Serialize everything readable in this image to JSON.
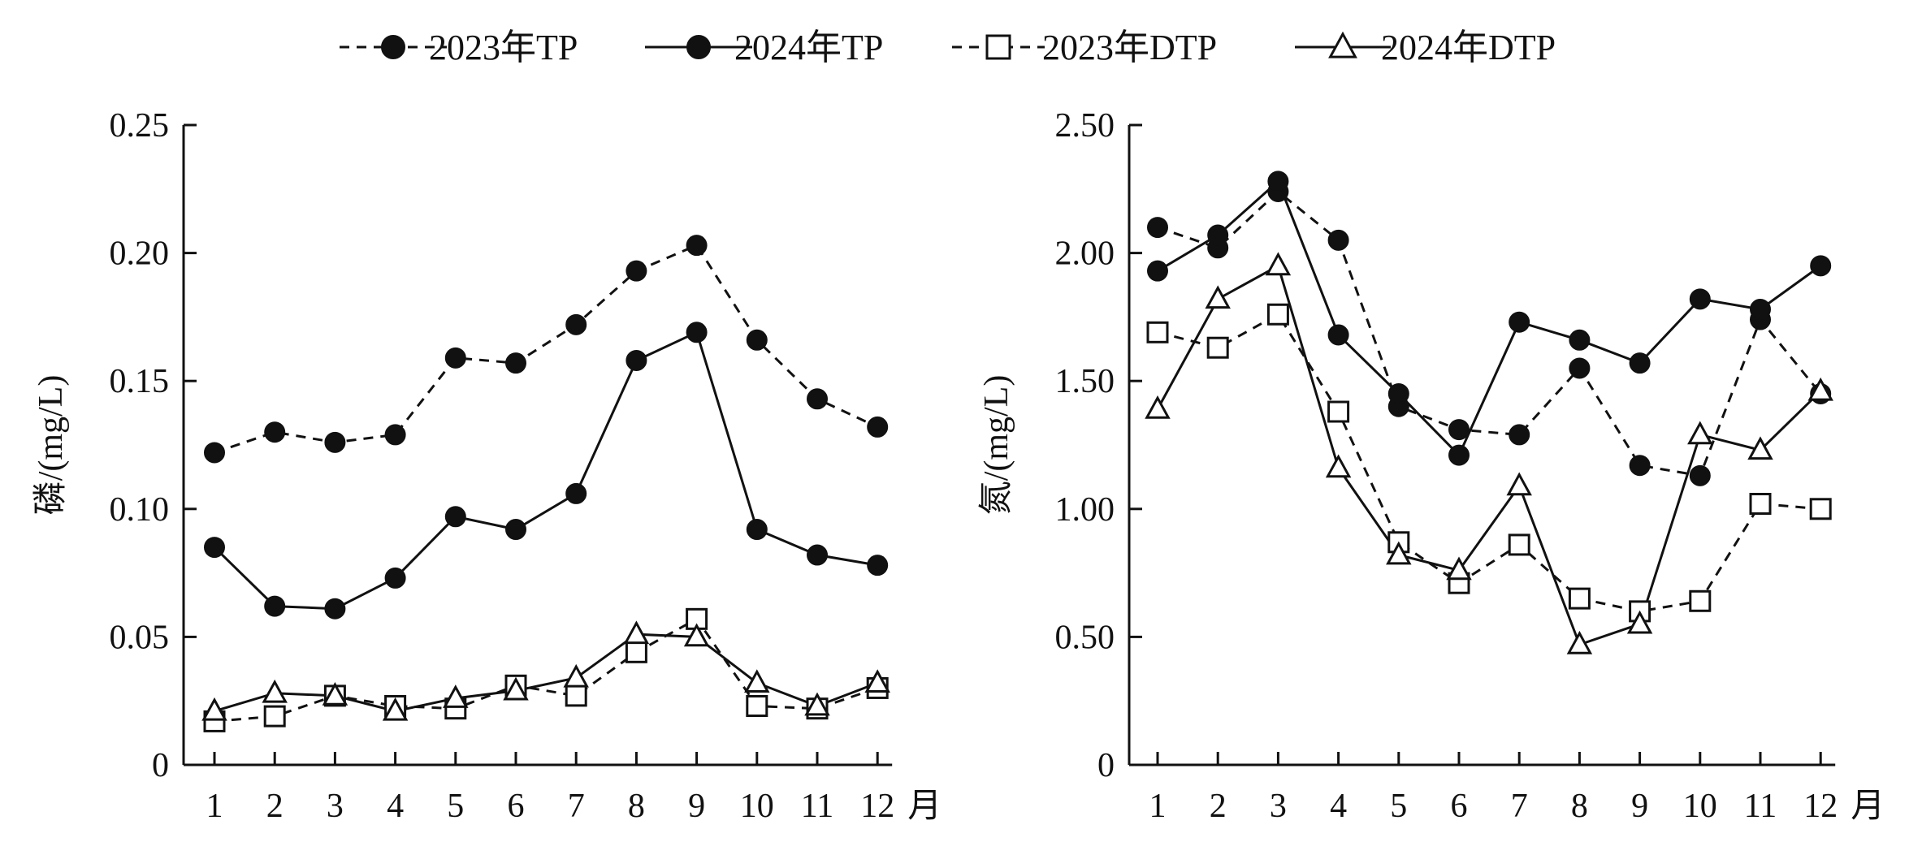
{
  "legend": [
    {
      "name": "2023年TP",
      "marker": "circle-filled",
      "dash": true
    },
    {
      "name": "2024年TP",
      "marker": "circle-filled",
      "dash": false
    },
    {
      "name": "2023年DTP",
      "marker": "square-open",
      "dash": true
    },
    {
      "name": "2024年DTP",
      "marker": "triangle-open",
      "dash": false
    }
  ],
  "chart_data": [
    {
      "type": "line",
      "ylabel": "磷/(mg/L)",
      "xunit": "月",
      "x": [
        1,
        2,
        3,
        4,
        5,
        6,
        7,
        8,
        9,
        10,
        11,
        12
      ],
      "ylim": [
        0,
        0.25
      ],
      "yticks": [
        "0",
        "0.05",
        "0.10",
        "0.15",
        "0.20",
        "0.25"
      ],
      "ytick_values": [
        0,
        0.05,
        0.1,
        0.15,
        0.2,
        0.25
      ],
      "series": [
        {
          "name": "2023年TP",
          "marker": "circle-filled",
          "dash": true,
          "values": [
            0.122,
            0.13,
            0.126,
            0.129,
            0.159,
            0.157,
            0.172,
            0.193,
            0.203,
            0.166,
            0.143,
            0.132
          ]
        },
        {
          "name": "2024年TP",
          "marker": "circle-filled",
          "dash": false,
          "values": [
            0.085,
            0.062,
            0.061,
            0.073,
            0.097,
            0.092,
            0.106,
            0.158,
            0.169,
            0.092,
            0.082,
            0.078
          ]
        },
        {
          "name": "2023年DTP",
          "marker": "square-open",
          "dash": true,
          "values": [
            0.017,
            0.019,
            0.027,
            0.023,
            0.022,
            0.031,
            0.027,
            0.044,
            0.057,
            0.023,
            0.022,
            0.03
          ]
        },
        {
          "name": "2024年DTP",
          "marker": "triangle-open",
          "dash": false,
          "values": [
            0.021,
            0.028,
            0.027,
            0.021,
            0.026,
            0.029,
            0.034,
            0.051,
            0.05,
            0.032,
            0.023,
            0.032
          ]
        }
      ]
    },
    {
      "type": "line",
      "ylabel": "氮/(mg/L)",
      "xunit": "月",
      "x": [
        1,
        2,
        3,
        4,
        5,
        6,
        7,
        8,
        9,
        10,
        11,
        12
      ],
      "ylim": [
        0,
        2.5
      ],
      "yticks": [
        "0",
        "0.50",
        "1.00",
        "1.50",
        "2.00",
        "2.50"
      ],
      "ytick_values": [
        0,
        0.5,
        1.0,
        1.5,
        2.0,
        2.5
      ],
      "series": [
        {
          "name": "2023年TP",
          "marker": "circle-filled",
          "dash": true,
          "values": [
            2.1,
            2.02,
            2.24,
            2.05,
            1.4,
            1.31,
            1.29,
            1.55,
            1.17,
            1.13,
            1.74,
            1.45
          ]
        },
        {
          "name": "2024年TP",
          "marker": "circle-filled",
          "dash": false,
          "values": [
            1.93,
            2.07,
            2.28,
            1.68,
            1.45,
            1.21,
            1.73,
            1.66,
            1.57,
            1.82,
            1.78,
            1.95
          ]
        },
        {
          "name": "2023年DTP",
          "marker": "square-open",
          "dash": true,
          "values": [
            1.69,
            1.63,
            1.76,
            1.38,
            0.87,
            0.71,
            0.86,
            0.65,
            0.6,
            0.64,
            1.02,
            1.0
          ]
        },
        {
          "name": "2024年DTP",
          "marker": "triangle-open",
          "dash": false,
          "values": [
            1.39,
            1.82,
            1.95,
            1.16,
            0.82,
            0.76,
            1.09,
            0.47,
            0.55,
            1.29,
            1.23,
            1.46
          ]
        }
      ]
    }
  ]
}
